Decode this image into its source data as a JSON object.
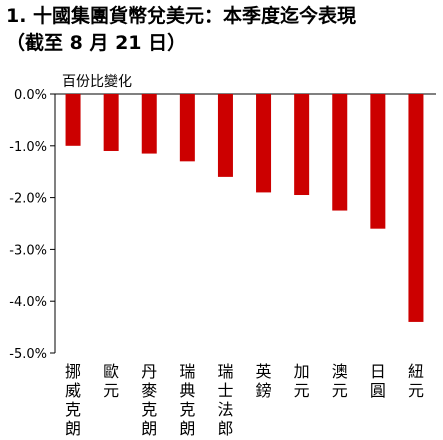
{
  "chart_data": {
    "type": "bar",
    "title": "1. 十國集團貨幣兌美元：本季度迄今表現",
    "subtitle": "（截至 8 月 21 日）",
    "ylabel": "百份比變化",
    "xlabel": "",
    "categories": [
      "挪威克朗",
      "歐元",
      "丹麥克朗",
      "瑞典克朗",
      "瑞士法郎",
      "英鎊",
      "加元",
      "澳元",
      "日圓",
      "紐元"
    ],
    "values": [
      -1.0,
      -1.1,
      -1.15,
      -1.3,
      -1.6,
      -1.9,
      -1.95,
      -2.25,
      -2.6,
      -4.4
    ],
    "ylim": [
      -5.0,
      0.0
    ],
    "yticks": [
      "0.0%",
      "-1.0%",
      "-2.0%",
      "-3.0%",
      "-4.0%",
      "-5.0%"
    ],
    "grid": false,
    "legend": "none",
    "bar_color": "#cc0000"
  }
}
